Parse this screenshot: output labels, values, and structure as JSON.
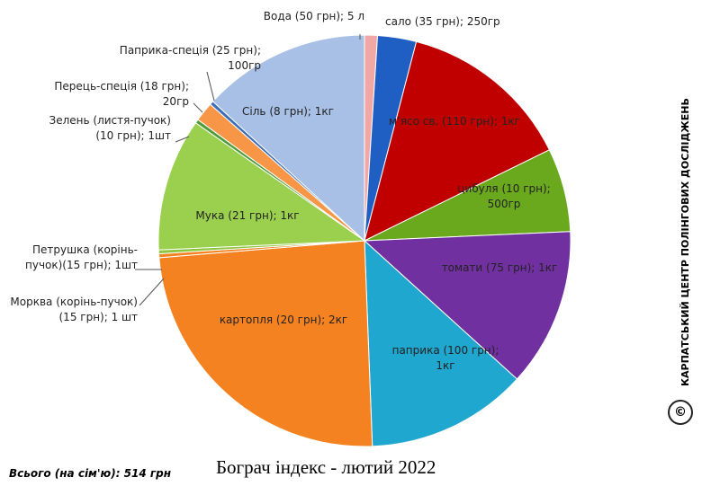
{
  "chart_data": {
    "type": "pie",
    "title": "Бограч індекс - лютий 2022",
    "total_note": "Всього (на сім'ю): 514 грн",
    "watermark": "КАРПАТСЬКИЙ ЦЕНТР ПОЛІНГОВИХ ДОСЛІДЖЕНЬ",
    "copyright": "©",
    "categories": [
      "Вода (50 грн); 5 л",
      "сало (35 грн); 250гр",
      "м’ясо св. (110 грн); 1кг",
      "цибуля (10 грн); 500гр",
      "томати (75 грн); 1кг",
      "паприка (100 грн); 1кг",
      "картопля (20 грн); 2кг",
      "Морква (корінь-пучок)(15 грн); 1 шт",
      "Петрушка (корінь-пучок)(15 грн); 1шт",
      "Мука (21 грн); 1кг",
      "Зелень (листя-пучок)(10 грн); 1шт",
      "Перець-спеція (18 грн); 20гр",
      "Паприка-спеція (25 грн); 100гр",
      "Сіль (8 грн); 1кг"
    ],
    "values": [
      1,
      3,
      13.5,
      6.5,
      12.3,
      12.5,
      24,
      0.3,
      0.3,
      10.3,
      0.3,
      1.5,
      0.3,
      13
    ],
    "colors": [
      "#f2a7a7",
      "#1f5fc4",
      "#c00000",
      "#6aa81e",
      "#7030a0",
      "#1fa7cf",
      "#f58220",
      "#f58220",
      "#8cc63f",
      "#9bd04f",
      "#4f9a3a",
      "#f79646",
      "#3d6fb8",
      "#a8c0e6"
    ]
  }
}
